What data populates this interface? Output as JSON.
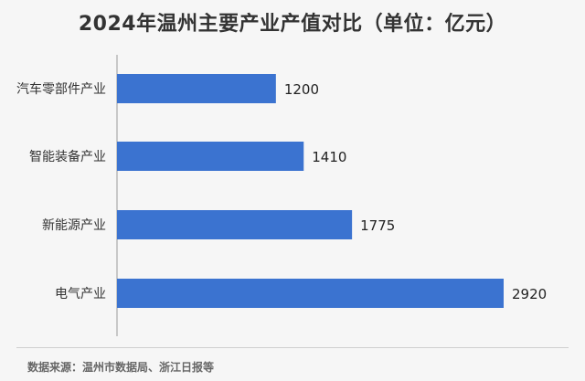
{
  "chart_data": {
    "type": "bar",
    "orientation": "horizontal",
    "title": "2024年温州主要产业产值对比（单位：亿元）",
    "categories": [
      "汽车零部件产业",
      "智能装备产业",
      "新能源产业",
      "电气产业"
    ],
    "values": [
      1200,
      1410,
      1775,
      2920
    ],
    "xlim": [
      0,
      2920
    ],
    "bar_color": "#3b73d0",
    "grid": false,
    "legend": "none"
  },
  "footer": {
    "source": "数据来源：温州市数据局、浙江日报等"
  }
}
